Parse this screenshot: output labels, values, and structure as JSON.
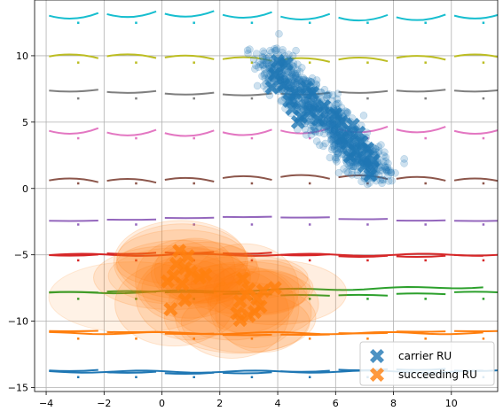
{
  "chart_data": {
    "type": "scatter",
    "title": "",
    "xlabel": "",
    "ylabel": "",
    "xlim": [
      -4.4,
      11.6
    ],
    "ylim": [
      -15.3,
      14.2
    ],
    "xticks": [
      -4,
      -2,
      0,
      2,
      4,
      6,
      8,
      10
    ],
    "yticks": [
      -15,
      -10,
      -5,
      0,
      5,
      10
    ],
    "grid": true,
    "legend": {
      "placement": "lower-right",
      "entries": [
        {
          "label": "carrier RU",
          "color": "#1f77b4",
          "marker": "X"
        },
        {
          "label": "succeeding RU",
          "color": "#ff7f0e",
          "marker": "X"
        }
      ]
    },
    "series": [
      {
        "name": "carrier RU",
        "color": "#1f77b4",
        "marker": "X",
        "points": [
          [
            4.0,
            9.6
          ],
          [
            4.3,
            9.4
          ],
          [
            3.9,
            8.6
          ],
          [
            4.2,
            7.8
          ],
          [
            3.8,
            7.6
          ],
          [
            4.6,
            7.2
          ],
          [
            4.4,
            6.6
          ],
          [
            5.0,
            7.6
          ],
          [
            5.2,
            7.2
          ],
          [
            4.5,
            6.0
          ],
          [
            4.8,
            5.4
          ],
          [
            5.1,
            5.8
          ],
          [
            5.4,
            5.2
          ],
          [
            5.6,
            6.2
          ],
          [
            4.7,
            5.0
          ],
          [
            6.0,
            5.6
          ],
          [
            6.2,
            5.0
          ],
          [
            6.6,
            4.8
          ],
          [
            6.2,
            3.8
          ],
          [
            6.8,
            4.2
          ],
          [
            6.4,
            3.4
          ],
          [
            6.9,
            3.5
          ],
          [
            7.1,
            3.0
          ],
          [
            6.5,
            2.4
          ],
          [
            7.3,
            2.1
          ],
          [
            7.0,
            1.7
          ],
          [
            7.2,
            1.0
          ],
          [
            6.7,
            2.8
          ]
        ]
      },
      {
        "name": "succeeding RU",
        "color": "#ff7f0e",
        "marker": "X",
        "points": [
          [
            0.6,
            -4.7
          ],
          [
            0.9,
            -5.1
          ],
          [
            0.5,
            -5.7
          ],
          [
            0.8,
            -6.0
          ],
          [
            0.4,
            -6.6
          ],
          [
            1.0,
            -6.3
          ],
          [
            0.7,
            -7.2
          ],
          [
            1.3,
            -6.7
          ],
          [
            1.5,
            -6.5
          ],
          [
            0.2,
            -7.0
          ],
          [
            0.8,
            -8.4
          ],
          [
            0.3,
            -9.1
          ],
          [
            2.8,
            -6.8
          ],
          [
            3.0,
            -7.6
          ],
          [
            2.9,
            -8.0
          ],
          [
            3.3,
            -8.3
          ],
          [
            3.5,
            -7.7
          ],
          [
            3.9,
            -7.5
          ],
          [
            2.7,
            -8.5
          ],
          [
            3.4,
            -8.9
          ],
          [
            2.6,
            -9.4
          ],
          [
            3.0,
            -9.6
          ],
          [
            2.7,
            -9.9
          ],
          [
            3.2,
            -9.3
          ]
        ]
      }
    ],
    "row_curves": [
      {
        "y": 12.9,
        "color": "#17becf"
      },
      {
        "y": 9.9,
        "color": "#bcbd22"
      },
      {
        "y": 7.2,
        "color": "#7f7f7f"
      },
      {
        "y": 4.2,
        "color": "#e377c2"
      },
      {
        "y": 0.8,
        "color": "#8c564b"
      },
      {
        "y": -2.3,
        "color": "#9467bd"
      },
      {
        "y": -5.0,
        "color": "#d62728"
      },
      {
        "y": -7.9,
        "color": "#2ca02c"
      },
      {
        "y": -10.9,
        "color": "#ff7f0e"
      },
      {
        "y": -13.8,
        "color": "#1f77b4"
      }
    ]
  }
}
